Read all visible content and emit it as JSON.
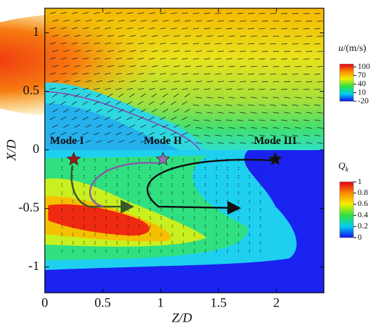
{
  "chart_data": {
    "type": "contour",
    "xlabel": "Z/D",
    "ylabel": "X/D",
    "xlim": [
      0,
      2.41
    ],
    "ylim": [
      -1.22,
      1.21
    ],
    "xticks": [
      0,
      0.5,
      1,
      1.5,
      2
    ],
    "yticks": [
      -1,
      -0.5,
      0,
      0.5,
      1
    ],
    "modes": [
      {
        "name": "Mode I",
        "z": 0.25,
        "x": -0.08,
        "color": "#a01818"
      },
      {
        "name": "Mode II",
        "z": 1.02,
        "x": -0.08,
        "color": "#9a6bb0"
      },
      {
        "name": "Mode III",
        "z": 1.99,
        "x": -0.08,
        "color": "#111111"
      }
    ],
    "colorbars": [
      {
        "label": {
          "main": "u",
          "rest": "/(m/s)"
        },
        "lim": [
          -20,
          110
        ],
        "ticks": [
          100,
          70,
          40,
          10,
          -20
        ]
      },
      {
        "label": {
          "main": "Q",
          "sub": "k"
        },
        "lim": [
          0,
          1
        ],
        "ticks": [
          1,
          0.8,
          0.6,
          0.4,
          0.2,
          0
        ]
      }
    ]
  }
}
